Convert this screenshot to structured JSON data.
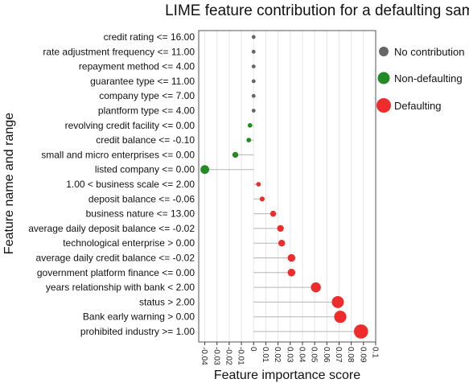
{
  "chart_data": {
    "type": "scatter",
    "title": "LIME feature contribution for a defaulting sample",
    "xlabel": "Feature importance score",
    "ylabel": "Feature name and range",
    "xlim": [
      -0.045,
      0.1
    ],
    "x_ticks": [
      "-0.04",
      "-0.03",
      "-0.02",
      "-0.01",
      "0",
      "0.01",
      "0.02",
      "0.03",
      "0.04",
      "0.05",
      "0.06",
      "0.07",
      "0.08",
      "0.09",
      "0.1"
    ],
    "grid": "vertical",
    "legend_position": "right",
    "legend": [
      {
        "label": "No contribution",
        "color": "#666666"
      },
      {
        "label": "Non-defaulting",
        "color": "#228B22"
      },
      {
        "label": "Defaulting",
        "color": "#EE2C2C"
      }
    ],
    "features": [
      {
        "label": "credit rating  <= 16.00",
        "value": 0.0,
        "class": "No contribution"
      },
      {
        "label": "rate adjustment frequency <= 11.00",
        "value": 0.0,
        "class": "No contribution"
      },
      {
        "label": "repayment method <= 4.00",
        "value": 0.0,
        "class": "No contribution"
      },
      {
        "label": "guarantee type <= 11.00",
        "value": 0.0,
        "class": "No contribution"
      },
      {
        "label": "company type <= 7.00",
        "value": 0.0,
        "class": "No contribution"
      },
      {
        "label": "plantform type <= 4.00",
        "value": 0.0,
        "class": "No contribution"
      },
      {
        "label": "revolving credit facility <= 0.00",
        "value": -0.003,
        "class": "Non-defaulting"
      },
      {
        "label": "credit balance  <= -0.10",
        "value": -0.004,
        "class": "Non-defaulting"
      },
      {
        "label": "small and micro enterprises <= 0.00",
        "value": -0.015,
        "class": "Non-defaulting"
      },
      {
        "label": "listed company  <= 0.00",
        "value": -0.04,
        "class": "Non-defaulting"
      },
      {
        "label": "1.00 < business scale <= 2.00",
        "value": 0.004,
        "class": "Defaulting"
      },
      {
        "label": "deposit balance <= -0.06",
        "value": 0.007,
        "class": "Defaulting"
      },
      {
        "label": "business nature <= 13.00",
        "value": 0.016,
        "class": "Defaulting"
      },
      {
        "label": "average daily deposit balance <= -0.02",
        "value": 0.022,
        "class": "Defaulting"
      },
      {
        "label": "technological enterprise > 0.00",
        "value": 0.023,
        "class": "Defaulting"
      },
      {
        "label": "average daily credit balance <= -0.02",
        "value": 0.031,
        "class": "Defaulting"
      },
      {
        "label": "government platform finance <= 0.00",
        "value": 0.031,
        "class": "Defaulting"
      },
      {
        "label": "years relationship with bank < 2.00",
        "value": 0.051,
        "class": "Defaulting"
      },
      {
        "label": "status > 2.00",
        "value": 0.069,
        "class": "Defaulting"
      },
      {
        "label": "Bank early warning > 0.00",
        "value": 0.071,
        "class": "Defaulting"
      },
      {
        "label": "prohibited industry >= 1.00",
        "value": 0.088,
        "class": "Defaulting"
      }
    ]
  }
}
